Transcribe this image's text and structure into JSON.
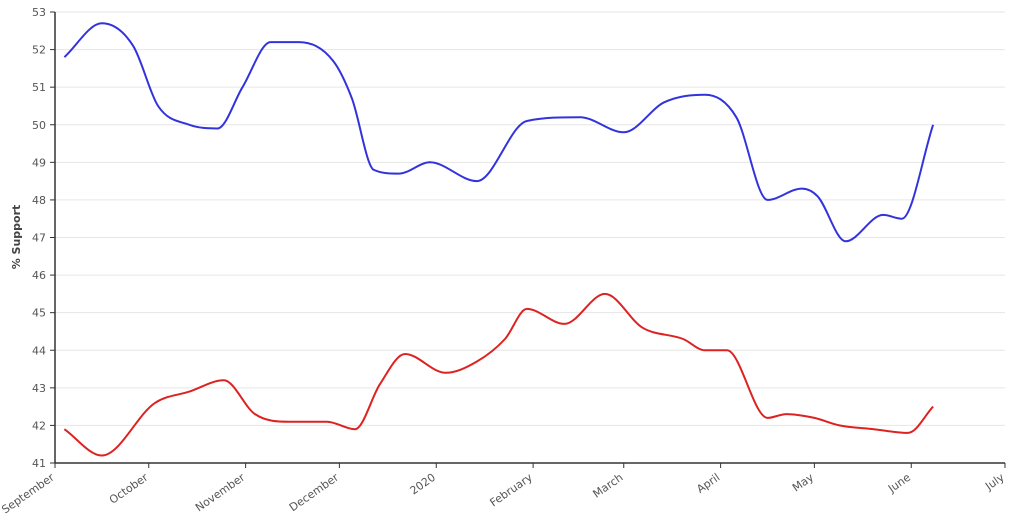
{
  "chart_data": {
    "type": "line",
    "title": "",
    "xlabel": "",
    "ylabel": "% Support",
    "ylim": [
      41,
      53
    ],
    "yticks": [
      41,
      42,
      43,
      44,
      45,
      46,
      47,
      48,
      49,
      50,
      51,
      52,
      53
    ],
    "xlim": [
      "2019-09-01",
      "2020-07-01"
    ],
    "xticks": [
      {
        "date": "2019-09-01",
        "label": "September"
      },
      {
        "date": "2019-10-01",
        "label": "October"
      },
      {
        "date": "2019-11-01",
        "label": "November"
      },
      {
        "date": "2019-12-01",
        "label": "December"
      },
      {
        "date": "2020-01-01",
        "label": "2020"
      },
      {
        "date": "2020-02-01",
        "label": "February"
      },
      {
        "date": "2020-03-01",
        "label": "March"
      },
      {
        "date": "2020-04-01",
        "label": "April"
      },
      {
        "date": "2020-05-01",
        "label": "May"
      },
      {
        "date": "2020-06-01",
        "label": "June"
      },
      {
        "date": "2020-07-01",
        "label": "July"
      }
    ],
    "grid": true,
    "series": [
      {
        "color": "#3333dd",
        "points": [
          [
            "2019-09-04",
            51.8
          ],
          [
            "2019-09-16",
            52.7
          ],
          [
            "2019-09-26",
            52.1
          ],
          [
            "2019-10-04",
            50.5
          ],
          [
            "2019-10-14",
            50.0
          ],
          [
            "2019-10-23",
            49.9
          ],
          [
            "2019-10-31",
            51.0
          ],
          [
            "2019-11-09",
            52.2
          ],
          [
            "2019-11-18",
            52.2
          ],
          [
            "2019-11-29",
            51.7
          ],
          [
            "2019-12-05",
            50.7
          ],
          [
            "2019-12-12",
            48.8
          ],
          [
            "2019-12-20",
            48.7
          ],
          [
            "2019-12-30",
            49.0
          ],
          [
            "2020-01-14",
            48.5
          ],
          [
            "2020-01-30",
            50.1
          ],
          [
            "2020-02-16",
            50.2
          ],
          [
            "2020-03-01",
            49.8
          ],
          [
            "2020-03-14",
            50.6
          ],
          [
            "2020-03-27",
            50.8
          ],
          [
            "2020-04-06",
            50.2
          ],
          [
            "2020-04-16",
            48.0
          ],
          [
            "2020-04-27",
            48.3
          ],
          [
            "2020-05-02",
            48.1
          ],
          [
            "2020-05-11",
            46.9
          ],
          [
            "2020-05-23",
            47.6
          ],
          [
            "2020-05-29",
            47.5
          ],
          [
            "2020-06-08",
            50.0
          ]
        ]
      },
      {
        "color": "#dd2222",
        "points": [
          [
            "2019-09-04",
            41.9
          ],
          [
            "2019-09-16",
            41.2
          ],
          [
            "2019-10-03",
            42.6
          ],
          [
            "2019-10-14",
            42.9
          ],
          [
            "2019-10-25",
            43.2
          ],
          [
            "2019-11-04",
            42.3
          ],
          [
            "2019-11-15",
            42.1
          ],
          [
            "2019-11-27",
            42.1
          ],
          [
            "2019-12-06",
            41.9
          ],
          [
            "2019-12-14",
            43.1
          ],
          [
            "2019-12-22",
            43.9
          ],
          [
            "2020-01-04",
            43.4
          ],
          [
            "2020-01-14",
            43.7
          ],
          [
            "2020-01-23",
            44.3
          ],
          [
            "2020-01-30",
            45.1
          ],
          [
            "2020-02-11",
            44.7
          ],
          [
            "2020-02-24",
            45.5
          ],
          [
            "2020-03-07",
            44.6
          ],
          [
            "2020-03-20",
            44.3
          ],
          [
            "2020-03-27",
            44.0
          ],
          [
            "2020-04-03",
            44.0
          ],
          [
            "2020-04-16",
            42.2
          ],
          [
            "2020-04-22",
            42.3
          ],
          [
            "2020-05-01",
            42.2
          ],
          [
            "2020-05-09",
            42.0
          ],
          [
            "2020-05-20",
            41.9
          ],
          [
            "2020-05-31",
            41.8
          ],
          [
            "2020-06-08",
            42.5
          ]
        ]
      }
    ]
  }
}
